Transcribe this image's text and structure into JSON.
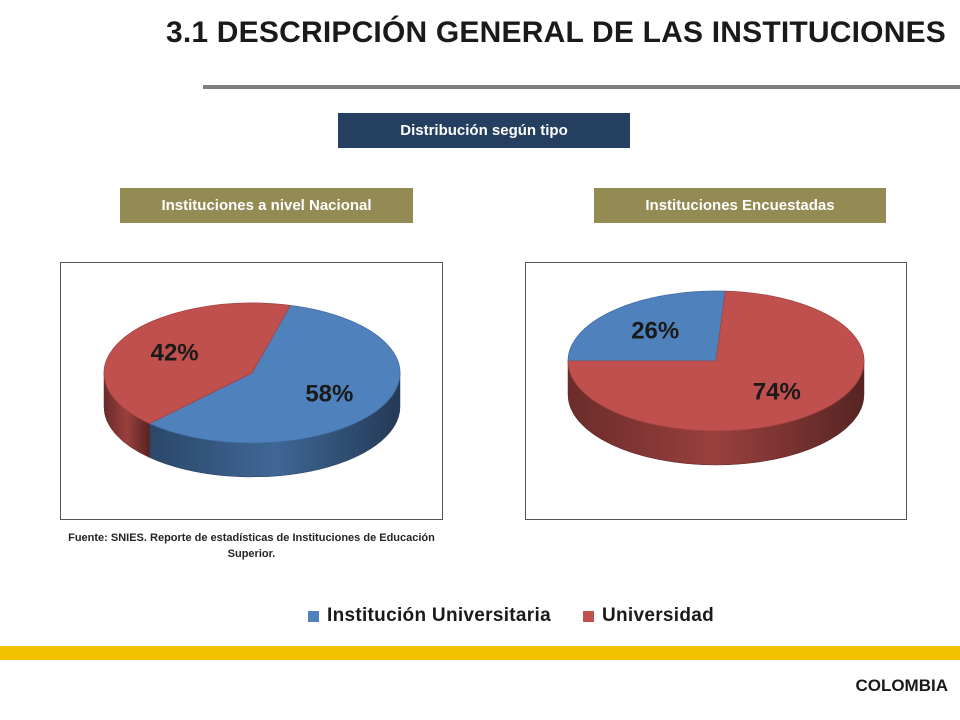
{
  "header": {
    "title": "3.1 DESCRIPCIÓN GENERAL DE LAS INSTITUCIONES"
  },
  "banners": {
    "main": "Distribución según tipo",
    "left": "Instituciones a nivel Nacional",
    "right": "Instituciones Encuestadas"
  },
  "source_note": "Fuente: SNIES. Reporte de estadísticas de Instituciones de Educación Superior.",
  "legend": [
    {
      "label": "Institución Universitaria",
      "color": "#4f81bd"
    },
    {
      "label": "Universidad",
      "color": "#c0504d"
    }
  ],
  "footer": {
    "country": "COLOMBIA",
    "accent_color": "#f2c200"
  },
  "chart_data": [
    {
      "type": "pie",
      "title": "Instituciones a nivel Nacional",
      "style": "3d",
      "categories": [
        "Institución Universitaria",
        "Universidad"
      ],
      "values": [
        58,
        42
      ],
      "labels": [
        "58%",
        "42%"
      ],
      "colors": [
        "#4f81bd",
        "#c0504d"
      ],
      "legend": "bottom"
    },
    {
      "type": "pie",
      "title": "Instituciones Encuestadas",
      "style": "3d",
      "categories": [
        "Institución Universitaria",
        "Universidad"
      ],
      "values": [
        26,
        74
      ],
      "labels": [
        "26%",
        "74%"
      ],
      "colors": [
        "#4f81bd",
        "#c0504d"
      ],
      "legend": "bottom"
    }
  ]
}
